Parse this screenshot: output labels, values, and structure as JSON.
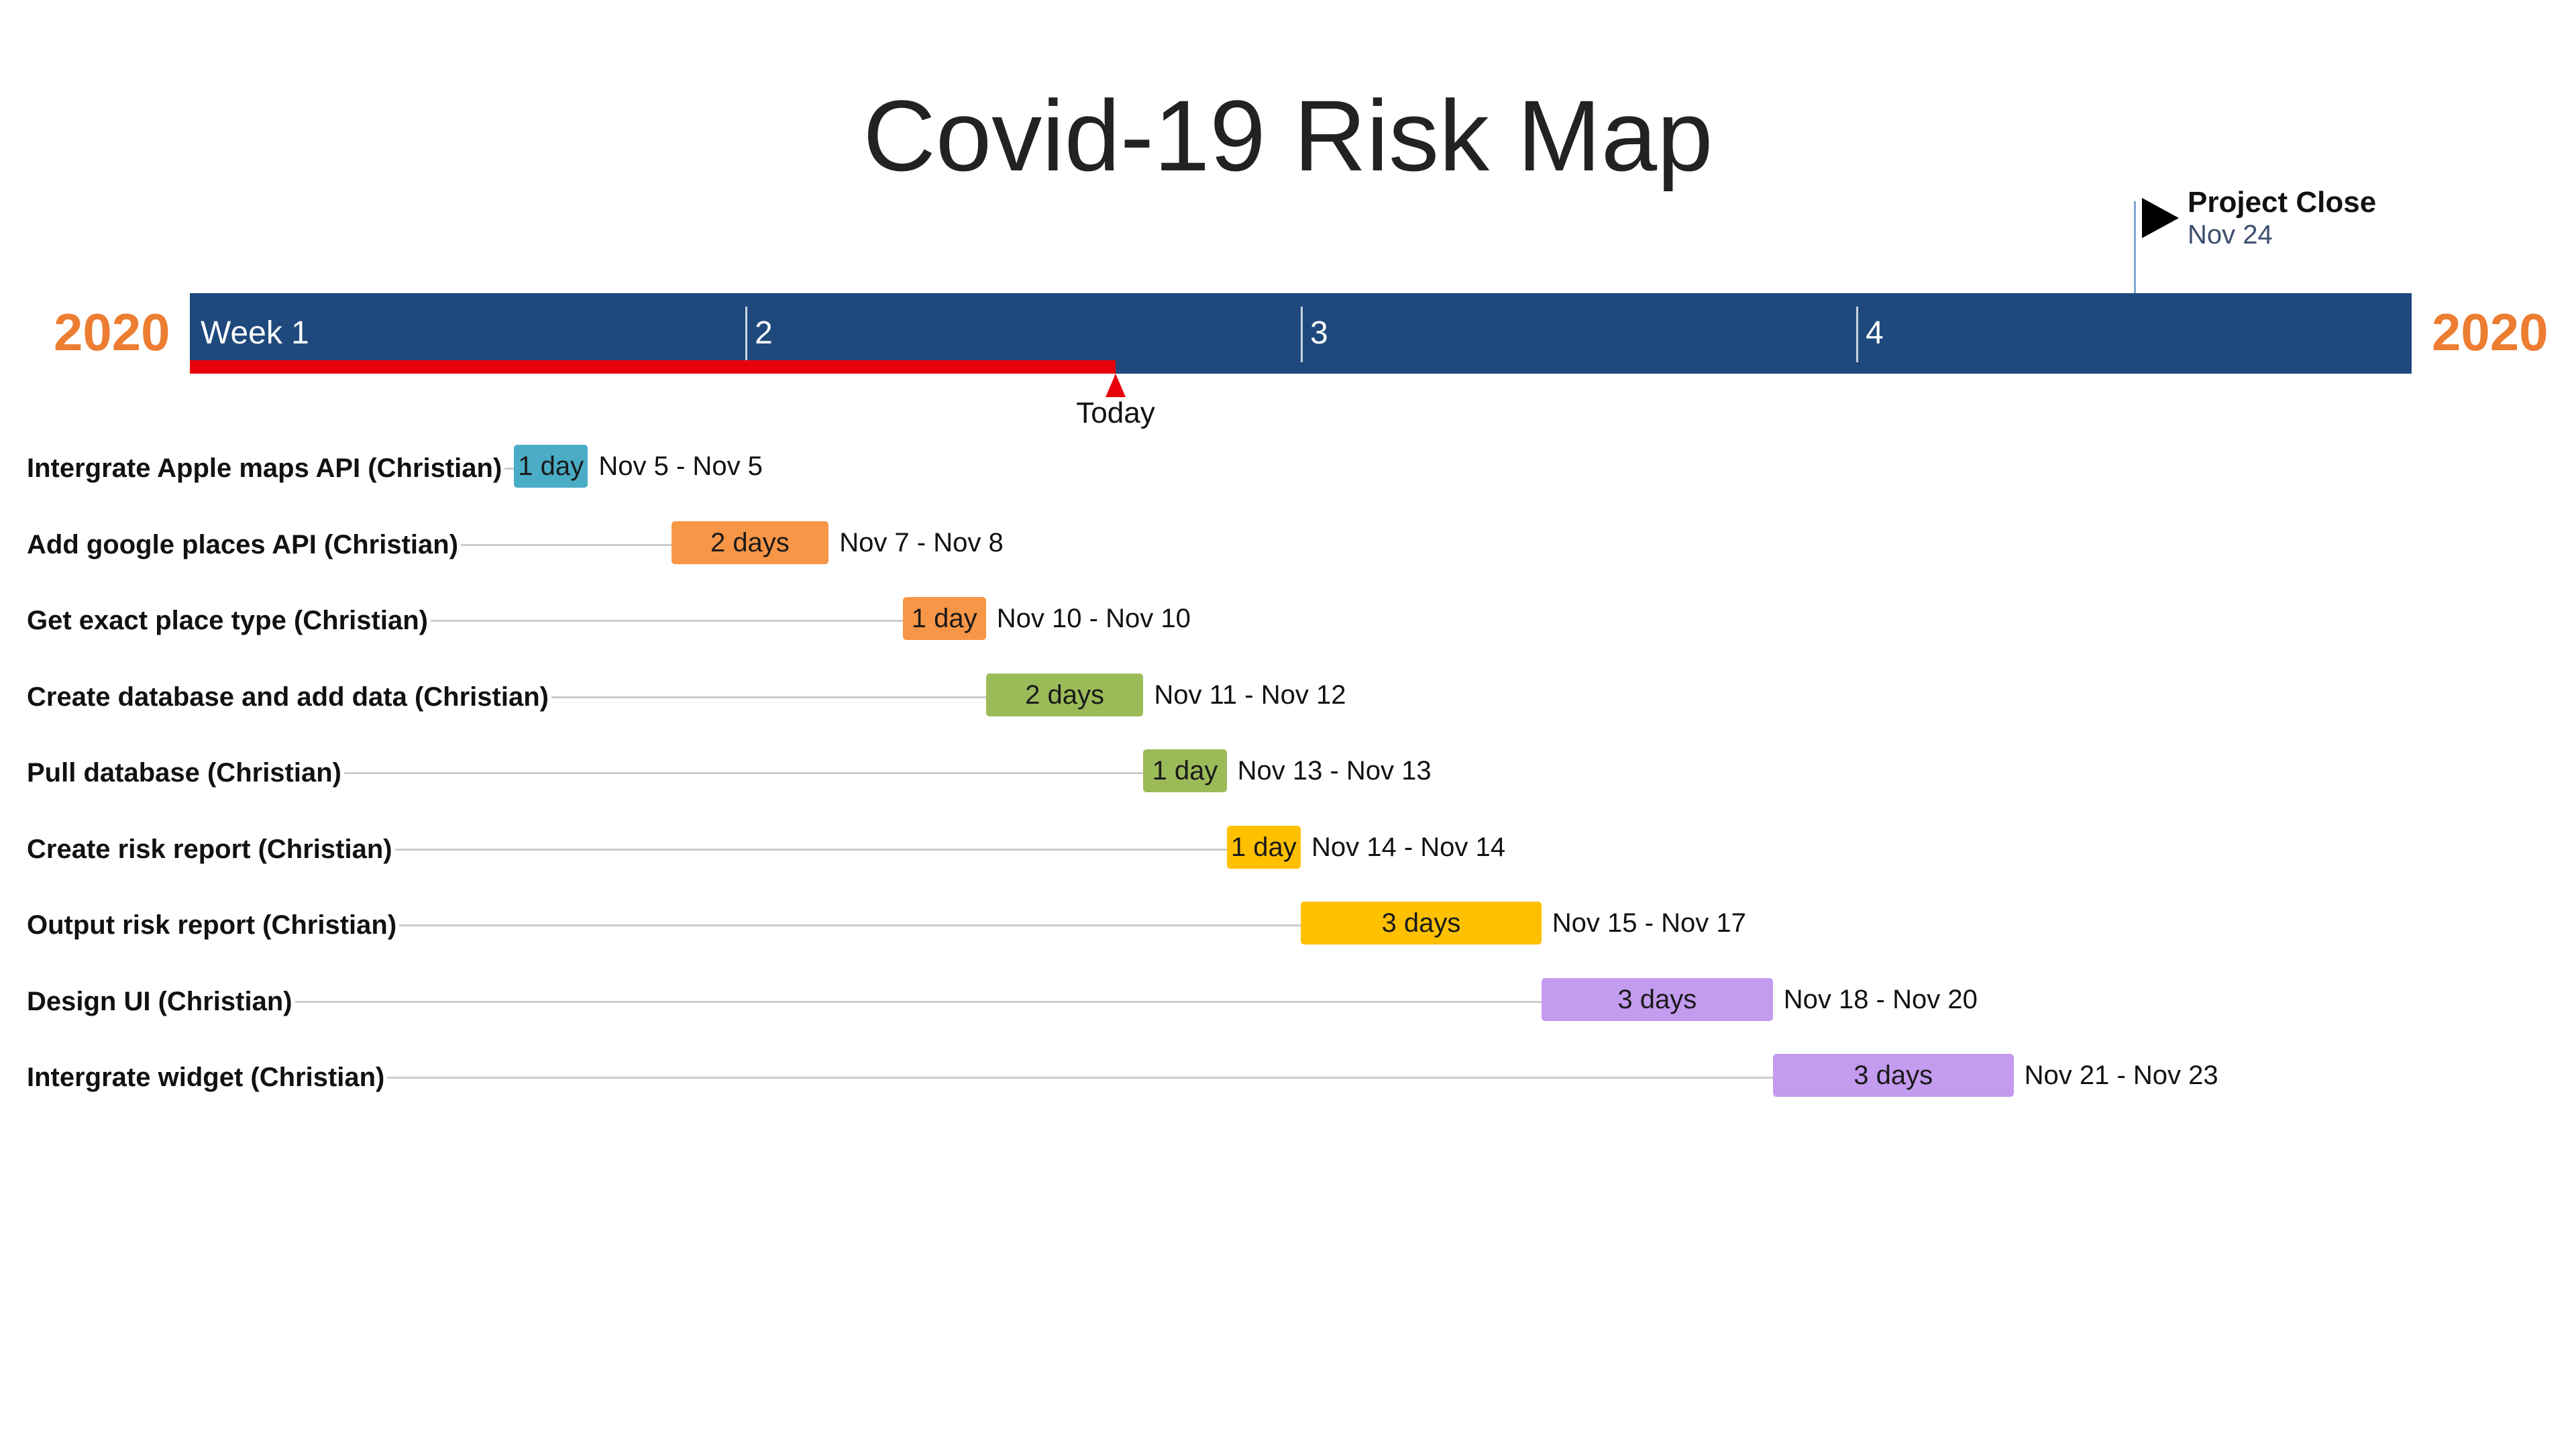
{
  "chart_data": {
    "type": "gantt",
    "title": "Covid-19 Risk Map",
    "year_label": "2020",
    "year_color": "#ed7d31",
    "timeline_color": "#1f497d",
    "progress_color": "#e8000b",
    "date_range": [
      "2020-11-04",
      "2020-11-28"
    ],
    "weeks": [
      {
        "label": "Week 1",
        "start": "2020-11-04"
      },
      {
        "label": "2",
        "start": "2020-11-10"
      },
      {
        "label": "3",
        "start": "2020-11-16"
      },
      {
        "label": "4",
        "start": "2020-11-22"
      }
    ],
    "today": {
      "label": "Today",
      "date": "2020-11-14"
    },
    "milestone": {
      "title": "Project Close",
      "date_label": "Nov 24",
      "date": "2020-11-25"
    },
    "tasks": [
      {
        "name": "Intergrate Apple maps API (Christian)",
        "duration": "1 day",
        "dates": "Nov 5 - Nov 5",
        "start": "2020-11-07.5",
        "end": "2020-11-08.3",
        "color": "#4bacc6"
      },
      {
        "name": "Add google places API (Christian)",
        "duration": "2 days",
        "dates": "Nov 7 - Nov 8",
        "start": "2020-11-09.2",
        "end": "2020-11-10.9",
        "color": "#f79646"
      },
      {
        "name": "Get exact place type (Christian)",
        "duration": "1 day",
        "dates": "Nov 10 - Nov 10",
        "start": "2020-11-11.7",
        "end": "2020-11-12.6",
        "color": "#f79646"
      },
      {
        "name": "Create database and add data (Christian)",
        "duration": "2 days",
        "dates": "Nov 11 - Nov 12",
        "start": "2020-11-12.6",
        "end": "2020-11-14.3",
        "color": "#9bbb59"
      },
      {
        "name": "Pull database (Christian)",
        "duration": "1 day",
        "dates": "Nov 13 - Nov 13",
        "start": "2020-11-14.3",
        "end": "2020-11-15.2",
        "color": "#9bbb59"
      },
      {
        "name": "Create risk report (Christian)",
        "duration": "1 day",
        "dates": "Nov 14 - Nov 14",
        "start": "2020-11-15.2",
        "end": "2020-11-16.0",
        "color": "#ffc000"
      },
      {
        "name": "Output risk report (Christian)",
        "duration": "3 days",
        "dates": "Nov 15 - Nov 17",
        "start": "2020-11-16.0",
        "end": "2020-11-18.6",
        "color": "#ffc000"
      },
      {
        "name": "Design UI (Christian)",
        "duration": "3 days",
        "dates": "Nov 18 - Nov 20",
        "start": "2020-11-18.6",
        "end": "2020-11-21.1",
        "color": "#c39bef"
      },
      {
        "name": "Intergrate widget (Christian)",
        "duration": "3 days",
        "dates": "Nov 21 - Nov 23",
        "start": "2020-11-21.1",
        "end": "2020-11-23.7",
        "color": "#c39bef"
      }
    ]
  }
}
